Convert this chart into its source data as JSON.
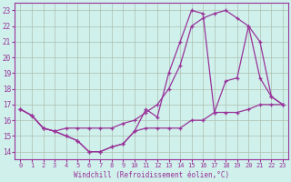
{
  "xlabel": "Windchill (Refroidissement éolien,°C)",
  "bg_color": "#cff0eb",
  "line_color": "#993399",
  "grid_color": "#aabbaa",
  "xlim": [
    -0.5,
    23.5
  ],
  "ylim": [
    13.5,
    23.5
  ],
  "xticks": [
    0,
    1,
    2,
    3,
    4,
    5,
    6,
    7,
    8,
    9,
    10,
    11,
    12,
    13,
    14,
    15,
    16,
    17,
    18,
    19,
    20,
    21,
    22,
    23
  ],
  "yticks": [
    14,
    15,
    16,
    17,
    18,
    19,
    20,
    21,
    22,
    23
  ],
  "series": [
    {
      "x": [
        0,
        1,
        2,
        3,
        4,
        5,
        6,
        7,
        8,
        9,
        10,
        11,
        12,
        13,
        14,
        15,
        16,
        17,
        18,
        19,
        20,
        21,
        22,
        23
      ],
      "y": [
        16.7,
        16.3,
        15.5,
        15.3,
        15.0,
        14.7,
        14.0,
        14.0,
        14.3,
        14.5,
        15.3,
        15.5,
        15.5,
        15.5,
        15.5,
        16.0,
        16.0,
        16.5,
        16.5,
        16.5,
        16.7,
        17.0,
        17.0,
        17.0
      ]
    },
    {
      "x": [
        0,
        1,
        2,
        3,
        4,
        5,
        6,
        7,
        8,
        9,
        10,
        11,
        12,
        13,
        14,
        15,
        16,
        17,
        18,
        19,
        20,
        21,
        22,
        23
      ],
      "y": [
        16.7,
        16.3,
        15.5,
        15.3,
        15.0,
        14.7,
        14.0,
        14.0,
        14.3,
        14.5,
        15.3,
        16.7,
        16.2,
        19.0,
        21.0,
        23.0,
        22.8,
        16.5,
        18.5,
        18.7,
        22.0,
        18.7,
        17.5,
        17.0
      ]
    },
    {
      "x": [
        0,
        1,
        2,
        3,
        4,
        5,
        6,
        7,
        8,
        9,
        10,
        11,
        12,
        13,
        14,
        15,
        16,
        17,
        18,
        19,
        20,
        21,
        22,
        23
      ],
      "y": [
        16.7,
        16.3,
        15.5,
        15.3,
        15.5,
        15.5,
        15.5,
        15.5,
        15.5,
        15.8,
        16.0,
        16.5,
        17.0,
        18.0,
        19.5,
        22.0,
        22.5,
        22.8,
        23.0,
        22.5,
        22.0,
        21.0,
        17.5,
        17.0
      ]
    }
  ]
}
